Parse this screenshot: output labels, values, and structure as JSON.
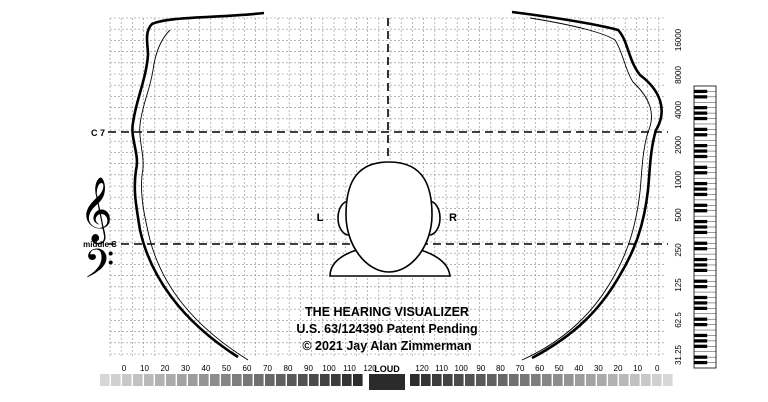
{
  "diagram": {
    "markers": {
      "c7": "C 7",
      "middle_c": "middle C"
    },
    "ears": {
      "left": "L",
      "right": "R"
    },
    "title_lines": [
      "THE HEARING VISUALIZER",
      "U.S. 63/124390 Patent Pending",
      "© 2021 Jay Alan Zimmerman"
    ],
    "loudness_axis": {
      "center_label": "LOUD",
      "left_ticks": [
        "0",
        "10",
        "20",
        "30",
        "40",
        "50",
        "60",
        "70",
        "80",
        "90",
        "100",
        "110",
        "120"
      ],
      "right_ticks": [
        "120",
        "110",
        "100",
        "90",
        "80",
        "70",
        "60",
        "50",
        "40",
        "30",
        "20",
        "10",
        "0"
      ]
    },
    "frequency_axis": {
      "ticks": [
        "16000",
        "8000",
        "4000",
        "2000",
        "1000",
        "500",
        "250",
        "125",
        "62.5",
        "31.25"
      ]
    },
    "clefs": [
      "treble-clef",
      "bass-clef"
    ]
  }
}
